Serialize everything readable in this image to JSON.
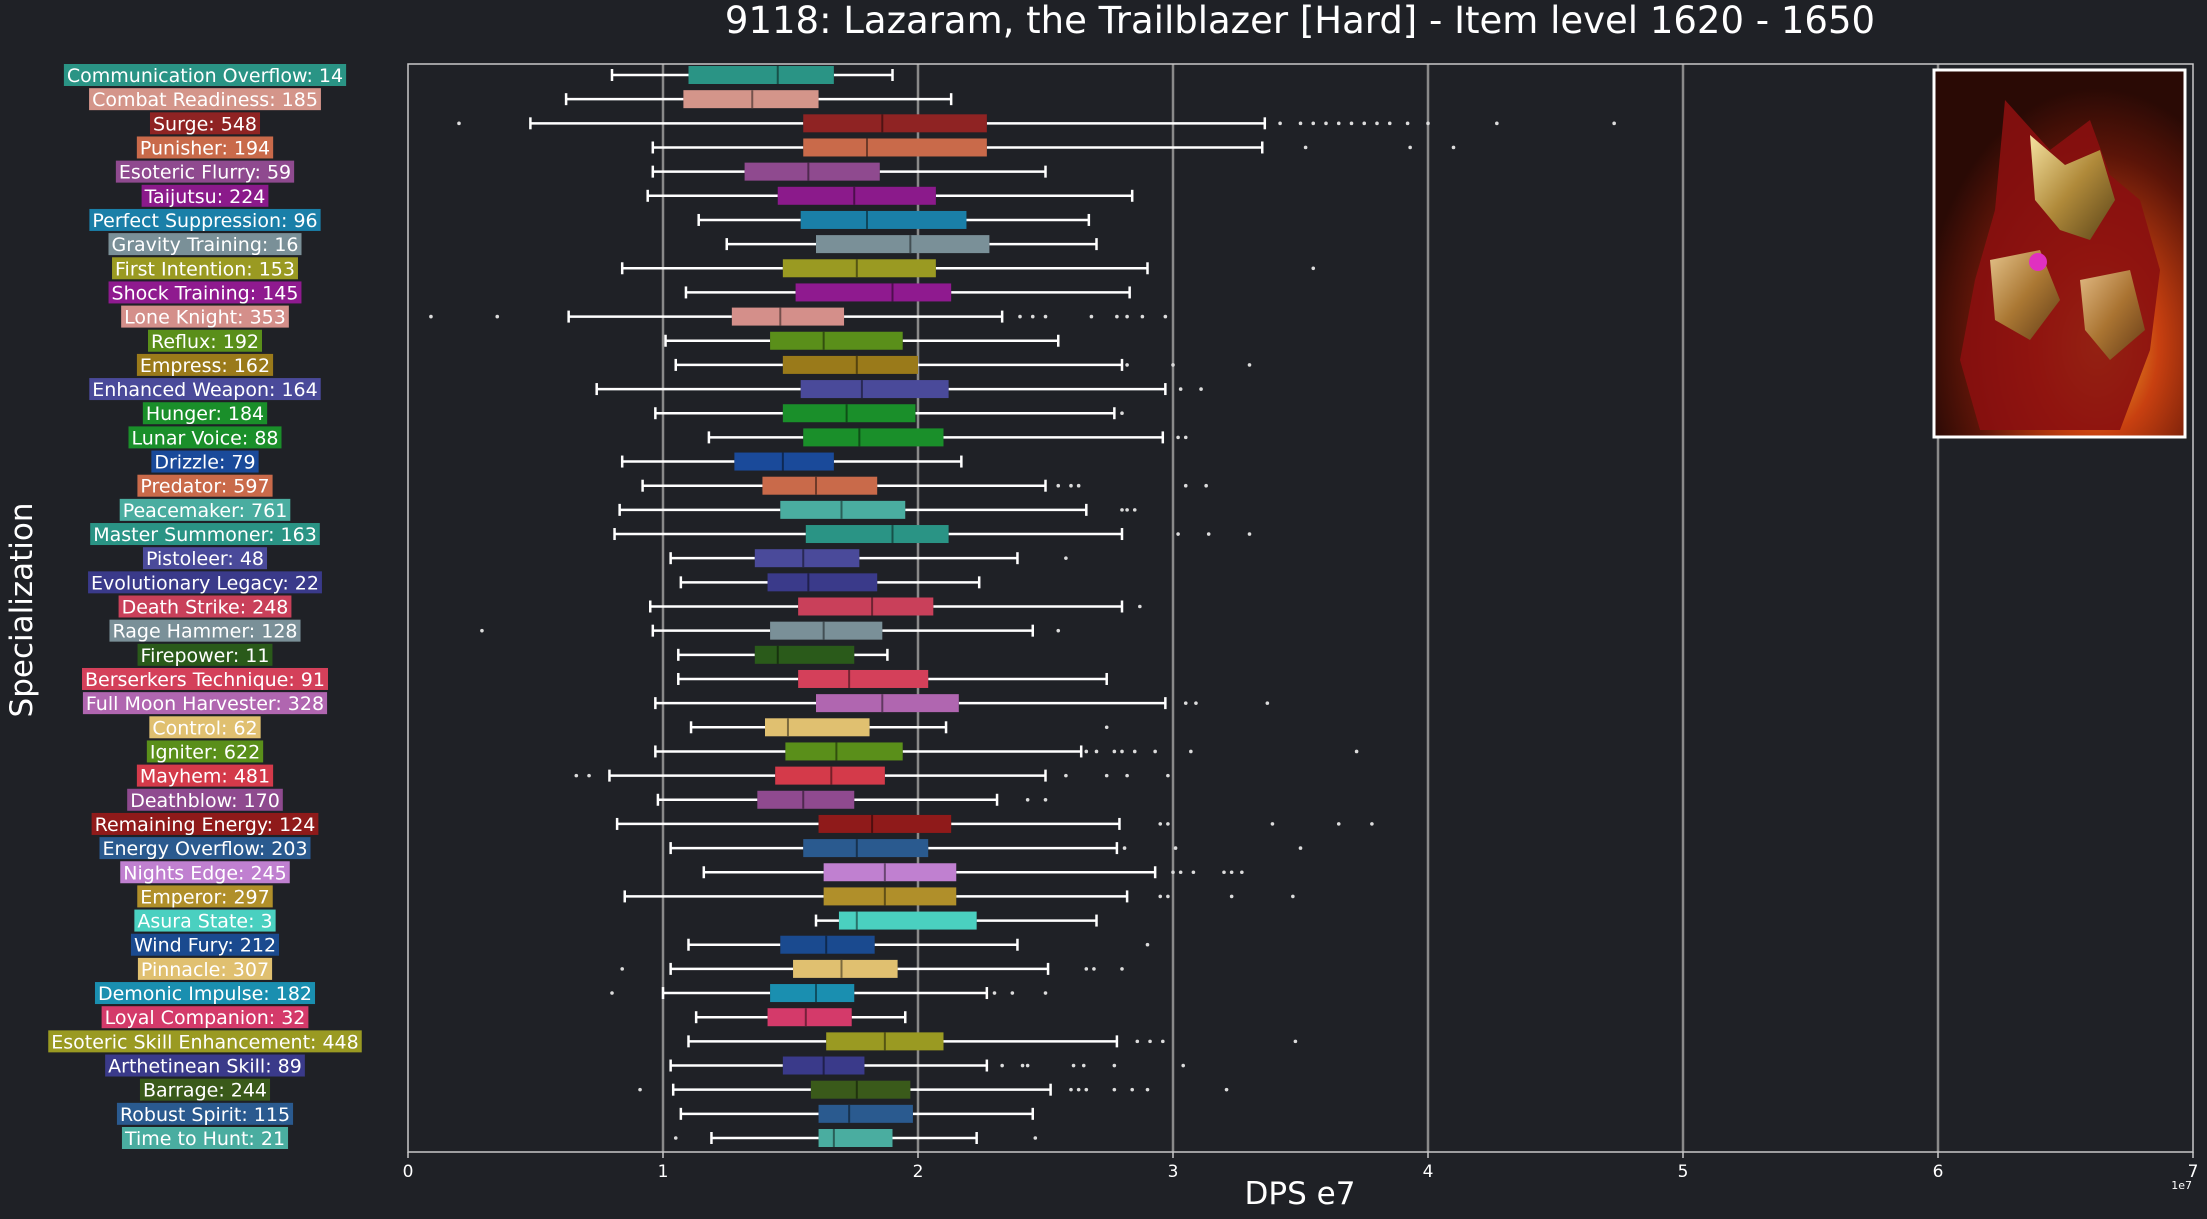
{
  "chart_data": {
    "type": "boxplot",
    "orientation": "horizontal",
    "title": "9118: Lazaram, the Trailblazer [Hard] - Item level 1620 - 1650",
    "xlabel": "DPS e7",
    "ylabel": "Specialization",
    "x_scale_label": "1e7",
    "xlim": [
      0,
      7
    ],
    "xticks": [
      0,
      1,
      2,
      3,
      4,
      5,
      6,
      7
    ],
    "grid": "vertical",
    "colors": {
      "background": "#1f2126",
      "axis": "#c8c8c8",
      "grid": "#8a8a8a",
      "whisker": "#ffffff",
      "text": "#ffffff"
    },
    "thumbnail_icon": "boss-portrait",
    "categories": [
      {
        "label": "Communication Overflow: 14",
        "color": "#2a9485",
        "whisker_low": 0.8,
        "q1": 1.1,
        "median": 1.45,
        "q3": 1.67,
        "whisker_high": 1.9,
        "outliers": []
      },
      {
        "label": "Combat Readiness: 185",
        "color": "#d4958a",
        "whisker_low": 0.62,
        "q1": 1.08,
        "median": 1.35,
        "q3": 1.61,
        "whisker_high": 2.13,
        "outliers": []
      },
      {
        "label": "Surge: 548",
        "color": "#8f2323",
        "whisker_low": 0.48,
        "q1": 1.55,
        "median": 1.86,
        "q3": 2.27,
        "whisker_high": 3.36,
        "outliers": [
          0.2,
          3.42,
          3.5,
          3.55,
          3.6,
          3.65,
          3.7,
          3.75,
          3.8,
          3.85,
          3.92,
          4.0,
          4.27,
          4.73
        ]
      },
      {
        "label": "Punisher: 194",
        "color": "#c96a4a",
        "whisker_low": 0.96,
        "q1": 1.55,
        "median": 1.8,
        "q3": 2.27,
        "whisker_high": 3.35,
        "outliers": [
          3.52,
          3.93,
          4.1
        ]
      },
      {
        "label": "Esoteric Flurry: 59",
        "color": "#8f4a8f",
        "whisker_low": 0.96,
        "q1": 1.32,
        "median": 1.57,
        "q3": 1.85,
        "whisker_high": 2.5,
        "outliers": []
      },
      {
        "label": "Taijutsu: 224",
        "color": "#8b1a8b",
        "whisker_low": 0.94,
        "q1": 1.45,
        "median": 1.75,
        "q3": 2.07,
        "whisker_high": 2.84,
        "outliers": []
      },
      {
        "label": "Perfect Suppression: 96",
        "color": "#1a7fa8",
        "whisker_low": 1.14,
        "q1": 1.54,
        "median": 1.8,
        "q3": 2.19,
        "whisker_high": 2.67,
        "outliers": []
      },
      {
        "label": "Gravity Training: 16",
        "color": "#7a9098",
        "whisker_low": 1.25,
        "q1": 1.6,
        "median": 1.97,
        "q3": 2.28,
        "whisker_high": 2.7,
        "outliers": []
      },
      {
        "label": "First Intention: 153",
        "color": "#9a9a22",
        "whisker_low": 0.84,
        "q1": 1.47,
        "median": 1.76,
        "q3": 2.07,
        "whisker_high": 2.9,
        "outliers": [
          3.55
        ]
      },
      {
        "label": "Shock Training: 145",
        "color": "#8f1a8f",
        "whisker_low": 1.09,
        "q1": 1.52,
        "median": 1.9,
        "q3": 2.13,
        "whisker_high": 2.83,
        "outliers": []
      },
      {
        "label": "Lone Knight: 353",
        "color": "#d48f8a",
        "whisker_low": 0.63,
        "q1": 1.27,
        "median": 1.46,
        "q3": 1.71,
        "whisker_high": 2.33,
        "outliers": [
          0.09,
          0.35,
          2.4,
          2.45,
          2.5,
          2.68,
          2.78,
          2.82,
          2.88,
          2.97
        ]
      },
      {
        "label": "Reflux: 192",
        "color": "#5a8f1a",
        "whisker_low": 1.01,
        "q1": 1.42,
        "median": 1.63,
        "q3": 1.94,
        "whisker_high": 2.55,
        "outliers": []
      },
      {
        "label": "Empress: 162",
        "color": "#9a7a1a",
        "whisker_low": 1.05,
        "q1": 1.47,
        "median": 1.76,
        "q3": 2.0,
        "whisker_high": 2.8,
        "outliers": [
          2.82,
          3.0,
          3.3
        ]
      },
      {
        "label": "Enhanced Weapon: 164",
        "color": "#4a4a9a",
        "whisker_low": 0.74,
        "q1": 1.54,
        "median": 1.78,
        "q3": 2.12,
        "whisker_high": 2.97,
        "outliers": [
          3.03,
          3.11
        ]
      },
      {
        "label": "Hunger: 184",
        "color": "#1a8f2a",
        "whisker_low": 0.97,
        "q1": 1.47,
        "median": 1.72,
        "q3": 1.99,
        "whisker_high": 2.77,
        "outliers": [
          2.8
        ]
      },
      {
        "label": "Lunar Voice: 88",
        "color": "#1a8f2a",
        "whisker_low": 1.18,
        "q1": 1.55,
        "median": 1.77,
        "q3": 2.1,
        "whisker_high": 2.96,
        "outliers": [
          3.02,
          3.05
        ]
      },
      {
        "label": "Drizzle: 79",
        "color": "#1a4a9a",
        "whisker_low": 0.84,
        "q1": 1.28,
        "median": 1.47,
        "q3": 1.67,
        "whisker_high": 2.17,
        "outliers": []
      },
      {
        "label": "Predator: 597",
        "color": "#c96a4a",
        "whisker_low": 0.92,
        "q1": 1.39,
        "median": 1.6,
        "q3": 1.84,
        "whisker_high": 2.5,
        "outliers": [
          2.55,
          2.6,
          2.63,
          3.05,
          3.13
        ]
      },
      {
        "label": "Peacemaker: 761",
        "color": "#4aada0",
        "whisker_low": 0.83,
        "q1": 1.46,
        "median": 1.7,
        "q3": 1.95,
        "whisker_high": 2.66,
        "outliers": [
          2.8,
          2.82,
          2.85
        ]
      },
      {
        "label": "Master Summoner: 163",
        "color": "#2a9485",
        "whisker_low": 0.81,
        "q1": 1.56,
        "median": 1.9,
        "q3": 2.12,
        "whisker_high": 2.8,
        "outliers": [
          3.02,
          3.14,
          3.3
        ]
      },
      {
        "label": "Pistoleer: 48",
        "color": "#4a4a9a",
        "whisker_low": 1.03,
        "q1": 1.36,
        "median": 1.55,
        "q3": 1.77,
        "whisker_high": 2.39,
        "outliers": [
          2.58
        ]
      },
      {
        "label": "Evolutionary Legacy: 22",
        "color": "#3a3a8a",
        "whisker_low": 1.07,
        "q1": 1.41,
        "median": 1.57,
        "q3": 1.84,
        "whisker_high": 2.24,
        "outliers": []
      },
      {
        "label": "Death Strike: 248",
        "color": "#c9405a",
        "whisker_low": 0.95,
        "q1": 1.53,
        "median": 1.82,
        "q3": 2.06,
        "whisker_high": 2.8,
        "outliers": [
          2.87
        ]
      },
      {
        "label": "Rage Hammer: 128",
        "color": "#7a9098",
        "whisker_low": 0.96,
        "q1": 1.42,
        "median": 1.63,
        "q3": 1.86,
        "whisker_high": 2.45,
        "outliers": [
          0.29,
          2.55
        ]
      },
      {
        "label": "Firepower: 11",
        "color": "#2a5a1a",
        "whisker_low": 1.06,
        "q1": 1.36,
        "median": 1.45,
        "q3": 1.75,
        "whisker_high": 1.88,
        "outliers": []
      },
      {
        "label": "Berserkers Technique: 91",
        "color": "#d4405a",
        "whisker_low": 1.06,
        "q1": 1.53,
        "median": 1.73,
        "q3": 2.04,
        "whisker_high": 2.74,
        "outliers": []
      },
      {
        "label": "Full Moon Harvester: 328",
        "color": "#b066b0",
        "whisker_low": 0.97,
        "q1": 1.6,
        "median": 1.86,
        "q3": 2.16,
        "whisker_high": 2.97,
        "outliers": [
          3.05,
          3.09,
          3.37
        ]
      },
      {
        "label": "Control: 62",
        "color": "#e0c070",
        "whisker_low": 1.11,
        "q1": 1.4,
        "median": 1.49,
        "q3": 1.81,
        "whisker_high": 2.11,
        "outliers": [
          2.74
        ]
      },
      {
        "label": "Igniter: 622",
        "color": "#5a8f1a",
        "whisker_low": 0.97,
        "q1": 1.48,
        "median": 1.68,
        "q3": 1.94,
        "whisker_high": 2.64,
        "outliers": [
          2.66,
          2.7,
          2.77,
          2.8,
          2.85,
          2.93,
          3.07,
          3.72
        ]
      },
      {
        "label": "Mayhem: 481",
        "color": "#d43a4a",
        "whisker_low": 0.79,
        "q1": 1.44,
        "median": 1.66,
        "q3": 1.87,
        "whisker_high": 2.5,
        "outliers": [
          0.66,
          0.71,
          2.58,
          2.74,
          2.82,
          2.98
        ]
      },
      {
        "label": "Deathblow: 170",
        "color": "#8f4a8f",
        "whisker_low": 0.98,
        "q1": 1.37,
        "median": 1.55,
        "q3": 1.75,
        "whisker_high": 2.31,
        "outliers": [
          2.43,
          2.5
        ]
      },
      {
        "label": "Remaining Energy: 124",
        "color": "#8f1a1a",
        "whisker_low": 0.82,
        "q1": 1.61,
        "median": 1.82,
        "q3": 2.13,
        "whisker_high": 2.79,
        "outliers": [
          2.95,
          2.98,
          3.39,
          3.65,
          3.78
        ]
      },
      {
        "label": "Energy Overflow: 203",
        "color": "#2a5a8f",
        "whisker_low": 1.03,
        "q1": 1.55,
        "median": 1.76,
        "q3": 2.04,
        "whisker_high": 2.78,
        "outliers": [
          2.81,
          3.01,
          3.5
        ]
      },
      {
        "label": "Nights Edge: 245",
        "color": "#c080d0",
        "whisker_low": 1.16,
        "q1": 1.63,
        "median": 1.87,
        "q3": 2.15,
        "whisker_high": 2.93,
        "outliers": [
          3.0,
          3.03,
          3.08,
          3.2,
          3.23,
          3.27
        ]
      },
      {
        "label": "Emperor: 297",
        "color": "#b08f2a",
        "whisker_low": 0.85,
        "q1": 1.63,
        "median": 1.87,
        "q3": 2.15,
        "whisker_high": 2.82,
        "outliers": [
          2.95,
          2.98,
          3.23,
          3.47
        ]
      },
      {
        "label": "Asura State: 3",
        "color": "#4ad0c0",
        "whisker_low": 1.6,
        "q1": 1.69,
        "median": 1.76,
        "q3": 2.23,
        "whisker_high": 2.7,
        "outliers": []
      },
      {
        "label": "Wind Fury: 212",
        "color": "#1a4a8f",
        "whisker_low": 1.1,
        "q1": 1.46,
        "median": 1.64,
        "q3": 1.83,
        "whisker_high": 2.39,
        "outliers": [
          2.9
        ]
      },
      {
        "label": "Pinnacle: 307",
        "color": "#e0c070",
        "whisker_low": 1.03,
        "q1": 1.51,
        "median": 1.7,
        "q3": 1.92,
        "whisker_high": 2.51,
        "outliers": [
          0.84,
          2.66,
          2.69,
          2.8
        ]
      },
      {
        "label": "Demonic Impulse: 182",
        "color": "#1a8fb0",
        "whisker_low": 1.0,
        "q1": 1.42,
        "median": 1.6,
        "q3": 1.75,
        "whisker_high": 2.27,
        "outliers": [
          0.8,
          2.3,
          2.37,
          2.5
        ]
      },
      {
        "label": "Loyal Companion: 32",
        "color": "#d43a6a",
        "whisker_low": 1.13,
        "q1": 1.41,
        "median": 1.56,
        "q3": 1.74,
        "whisker_high": 1.95,
        "outliers": []
      },
      {
        "label": "Esoteric Skill Enhancement: 448",
        "color": "#9a9a22",
        "whisker_low": 1.1,
        "q1": 1.64,
        "median": 1.87,
        "q3": 2.1,
        "whisker_high": 2.78,
        "outliers": [
          2.86,
          2.91,
          2.96,
          3.48
        ]
      },
      {
        "label": "Arthetinean Skill: 89",
        "color": "#3a3a8a",
        "whisker_low": 1.03,
        "q1": 1.47,
        "median": 1.63,
        "q3": 1.79,
        "whisker_high": 2.27,
        "outliers": [
          2.33,
          2.41,
          2.43,
          2.61,
          2.65,
          2.77,
          3.04
        ]
      },
      {
        "label": "Barrage: 244",
        "color": "#3a5a1a",
        "whisker_low": 1.04,
        "q1": 1.58,
        "median": 1.76,
        "q3": 1.97,
        "whisker_high": 2.52,
        "outliers": [
          0.91,
          2.6,
          2.63,
          2.66,
          2.77,
          2.84,
          2.9,
          3.21
        ]
      },
      {
        "label": "Robust Spirit: 115",
        "color": "#2a5a8f",
        "whisker_low": 1.07,
        "q1": 1.61,
        "median": 1.73,
        "q3": 1.98,
        "whisker_high": 2.45,
        "outliers": []
      },
      {
        "label": "Time to Hunt: 21",
        "color": "#4aada0",
        "whisker_low": 1.19,
        "q1": 1.61,
        "median": 1.67,
        "q3": 1.9,
        "whisker_high": 2.23,
        "outliers": [
          1.05,
          2.46
        ]
      }
    ]
  }
}
